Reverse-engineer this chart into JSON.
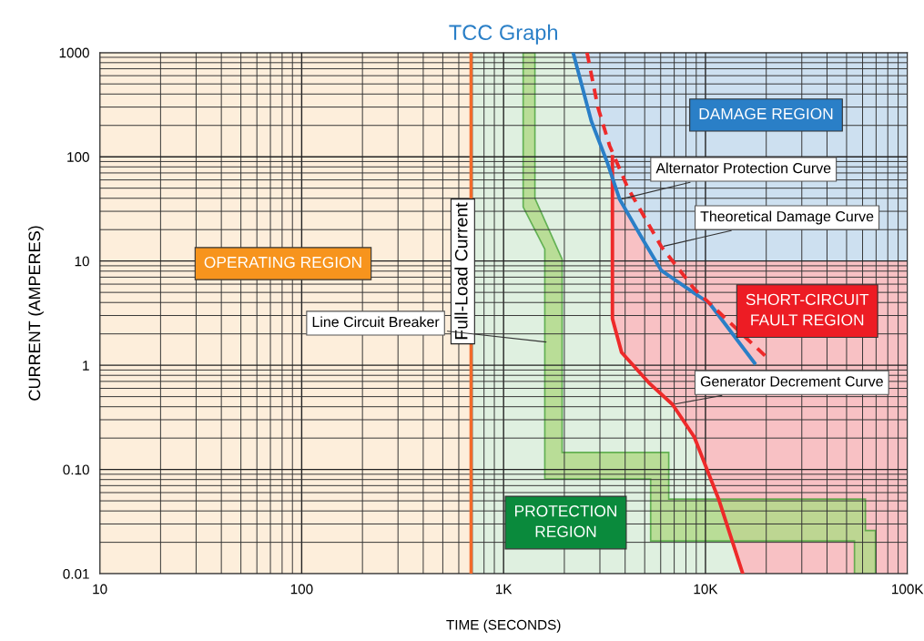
{
  "chart_data": {
    "type": "line",
    "title": "TCC Graph",
    "xlabel": "TIME (SECONDS)",
    "ylabel": "CURRENT (AMPERES)",
    "log": "xy",
    "grid": true,
    "xlim": [
      10,
      100000
    ],
    "ylim": [
      0.01,
      1000
    ],
    "xticks": [
      10,
      100,
      {
        "value": 1000,
        "label": "1K"
      },
      {
        "value": 10000,
        "label": "10K"
      },
      {
        "value": 100000,
        "label": "100K"
      }
    ],
    "yticks": [
      0.01,
      {
        "value": 0.1,
        "label": "0.10"
      },
      1,
      10,
      100,
      1000
    ],
    "bands": [
      {
        "axis": "x",
        "from": 10,
        "to": 690,
        "color": "#fdeedb"
      },
      {
        "axis": "x",
        "from": 690,
        "to": 100000,
        "color": "#dff0e0"
      }
    ],
    "ref_lines": [
      {
        "axis": "x",
        "value": 690,
        "label": "Full-Load Current",
        "color": "#f26a2a"
      }
    ],
    "series": [
      {
        "type": "area",
        "color": "#cde0f0",
        "x": [
          2210,
          2720,
          3250,
          3760,
          4900,
          5500,
          100000,
          100000
        ],
        "values": [
          1000,
          220,
          90,
          39,
          16,
          10,
          10,
          1000
        ]
      },
      {
        "type": "area",
        "color": "#f8c1c4",
        "x": [
          3460,
          3760,
          4900,
          5500,
          100000,
          100000,
          15300,
          11700,
          8800,
          6870,
          5240,
          3840,
          3460
        ],
        "values": [
          65,
          39,
          16,
          10,
          10,
          0.01,
          0.01,
          0.05,
          0.205,
          0.42,
          0.68,
          1.33,
          2.8
        ]
      },
      {
        "type": "area",
        "color": "#b3d98a",
        "x": [
          1250,
          1430,
          1430,
          1950,
          1950,
          6580,
          6580,
          62000,
          62000,
          69500,
          69500,
          54700,
          54700,
          5350,
          5350,
          1600,
          1600,
          1250
        ],
        "values": [
          1000,
          1000,
          40,
          10.4,
          0.146,
          0.146,
          0.052,
          0.052,
          0.026,
          0.026,
          0.01,
          0.01,
          0.0206,
          0.0206,
          0.081,
          0.081,
          13,
          33
        ]
      },
      {
        "color": "#ee2a2a",
        "line_style": "solid",
        "x": [
          3460,
          3460,
          3840,
          5240,
          6870,
          8800,
          11700,
          15300
        ],
        "values": [
          100,
          2.8,
          1.33,
          0.68,
          0.42,
          0.205,
          0.05,
          0.01
        ]
      },
      {
        "color": "#2a7fc7",
        "line_style": "solid",
        "x": [
          2210,
          2720,
          3250,
          3760,
          4900,
          6050,
          10500,
          17500
        ],
        "values": [
          1000,
          220,
          90,
          39,
          16,
          8.1,
          3.9,
          1.05
        ]
      },
      {
        "color": "#ee2a2a",
        "line_style": "dashed",
        "x": [
          2590,
          2930,
          3350,
          4130,
          6050,
          8800,
          20400
        ],
        "values": [
          1000,
          300,
          128,
          50,
          13.7,
          5.4,
          1.16
        ]
      }
    ],
    "annotations": [
      "OPERATING REGION",
      "DAMAGE REGION",
      "SHORT-CIRCUIT\nFAULT REGION",
      "PROTECTION\nREGION",
      {
        "text": "Alternator Protection Curve",
        "x": 3760,
        "y": 39
      },
      {
        "text": "Theoretical Damage Curve",
        "x": 6050,
        "y": 13.7
      },
      {
        "text": "Line Circuit Breaker",
        "x": 1670,
        "y": 1.66
      },
      {
        "text": "Generator Decrement Curve",
        "x": 6870,
        "y": 0.42
      }
    ]
  }
}
